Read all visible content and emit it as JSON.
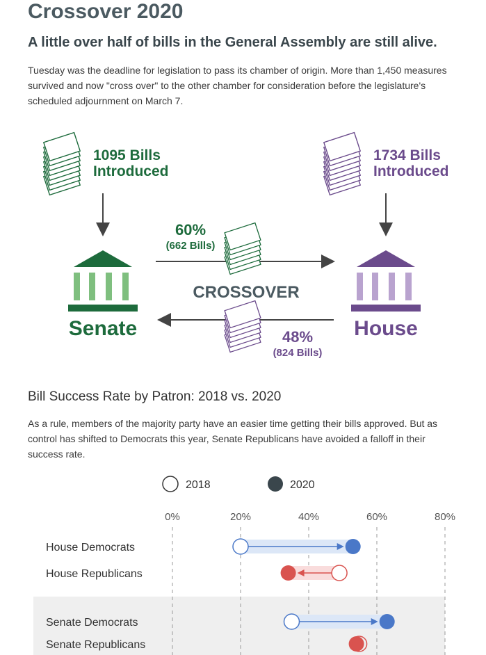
{
  "title": "Crossover 2020",
  "subtitle": "A little over half of bills in the General Assembly are still alive.",
  "intro": "Tuesday was the deadline for legislation to pass its chamber of origin. More than 1,450 measures survived and now \"cross over\" to the other chamber for consideration before the legislature's scheduled adjournment on March 7.",
  "diagram": {
    "senate": {
      "name": "Senate",
      "bills_line1": "1095 Bills",
      "bills_line2": "Introduced",
      "color": "#1d6b3c",
      "light": "#7fbf7f"
    },
    "house": {
      "name": "House",
      "bills_line1": "1734 Bills",
      "bills_line2": "Introduced",
      "color": "#6b4b8c",
      "light": "#b9a3cf"
    },
    "crossover_label": "CROSSOVER",
    "senate_to_house": {
      "percent": "60%",
      "count": "(662 Bills)"
    },
    "house_to_senate": {
      "percent": "48%",
      "count": "(824 Bills)"
    }
  },
  "section": {
    "title": "Bill Success Rate by Patron: 2018 vs. 2020",
    "text": "As a rule, members of the majority party have an easier time getting their bills approved. But as control has shifted to Democrats this year, Senate Republicans have avoided a falloff in their success rate."
  },
  "chart_data": {
    "type": "dot-arrow",
    "legend": [
      "2018",
      "2020"
    ],
    "x_ticks": [
      "0%",
      "20%",
      "40%",
      "60%",
      "80%"
    ],
    "xlim": [
      0,
      80
    ],
    "rows": [
      {
        "label": "House Democrats",
        "y2018": 20,
        "y2020": 53,
        "color": "#4a78c8",
        "band": "#dce7f7"
      },
      {
        "label": "House Republicans",
        "y2018": 49,
        "y2020": 34,
        "color": "#d9534f",
        "band": "#f9dcdc"
      },
      {
        "label": "Senate Democrats",
        "y2018": 35,
        "y2020": 63,
        "color": "#4a78c8",
        "band": "#dce7f7"
      },
      {
        "label": "Senate Republicans",
        "y2018": 54,
        "y2020": 54,
        "color": "#d9534f",
        "band": "#f9dcdc"
      }
    ],
    "colors": {
      "open_fill": "#ffffff",
      "legend_2020": "#3a464c",
      "grid": "#999999",
      "senate_bg": "#efefef"
    }
  }
}
